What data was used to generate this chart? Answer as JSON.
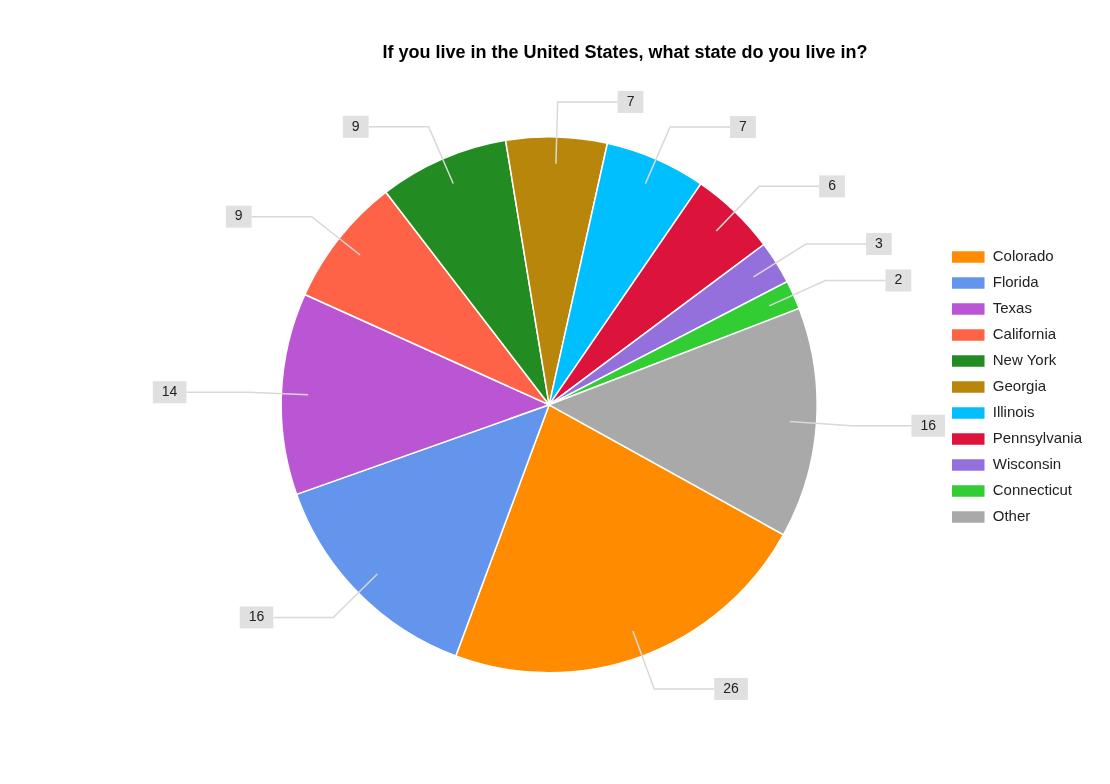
{
  "chart_data": {
    "type": "pie",
    "title": "If you live in the United States, what state do you live in?",
    "categories": [
      "Colorado",
      "Florida",
      "Texas",
      "California",
      "New York",
      "Georgia",
      "Illinois",
      "Pennsylvania",
      "Wisconsin",
      "Connecticut",
      "Other"
    ],
    "values": [
      26,
      16,
      14,
      9,
      9,
      7,
      7,
      6,
      3,
      2,
      16
    ],
    "colors": [
      "#ff8c00",
      "#6495ed",
      "#ba55d3",
      "#ff6347",
      "#228b22",
      "#b8860b",
      "#00bfff",
      "#dc143c",
      "#9370db",
      "#32cd32",
      "#a9a9a9"
    ],
    "data_labels": true,
    "legend": "right"
  }
}
